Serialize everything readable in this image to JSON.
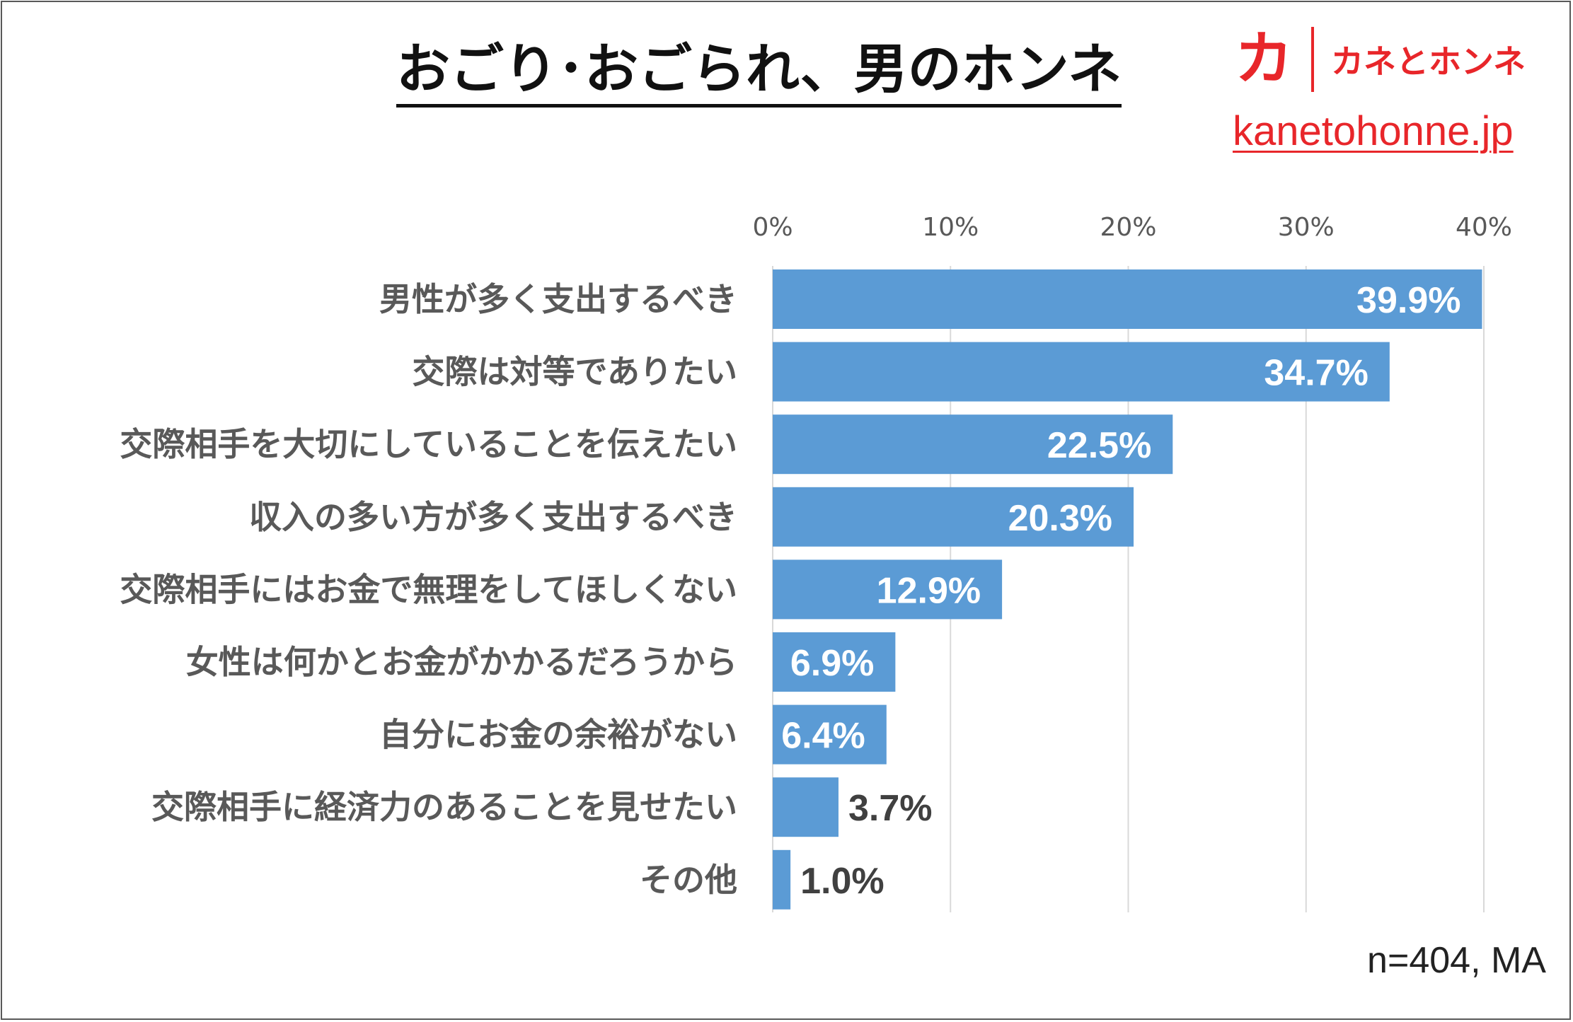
{
  "title": "おごり･おごられ、男のホンネ",
  "logo": {
    "mark": "カ",
    "text": "カネとホンネ",
    "url": "kanetohonne.jp"
  },
  "note": "n=404, MA",
  "colors": {
    "bar": "#5b9bd5",
    "brand": "#e8262a",
    "grid": "#d9d9d9",
    "label_inside": "#ffffff",
    "label_outside": "#404040",
    "category_text": "#595959",
    "tick_text": "#595959"
  },
  "chart_data": {
    "type": "bar",
    "orientation": "horizontal",
    "categories": [
      "男性が多く支出するべき",
      "交際は対等でありたい",
      "交際相手を大切にしていることを伝えたい",
      "収入の多い方が多く支出するべき",
      "交際相手にはお金で無理をしてほしくない",
      "女性は何かとお金がかかるだろうから",
      "自分にお金の余裕がない",
      "交際相手に経済力のあることを見せたい",
      "その他"
    ],
    "values": [
      39.9,
      34.7,
      22.5,
      20.3,
      12.9,
      6.9,
      6.4,
      3.7,
      1.0
    ],
    "data_labels": [
      "39.9%",
      "34.7%",
      "22.5%",
      "20.3%",
      "12.9%",
      "6.9%",
      "6.4%",
      "3.7%",
      "1.0%"
    ],
    "xlim": [
      0,
      40
    ],
    "ticks": [
      0,
      10,
      20,
      30,
      40
    ],
    "tick_labels": [
      "0%",
      "10%",
      "20%",
      "30%",
      "40%"
    ],
    "xaxis_position": "top",
    "grid": true,
    "legend": "none",
    "title": "おごり･おごられ、男のホンネ",
    "xlabel": "",
    "ylabel": ""
  }
}
